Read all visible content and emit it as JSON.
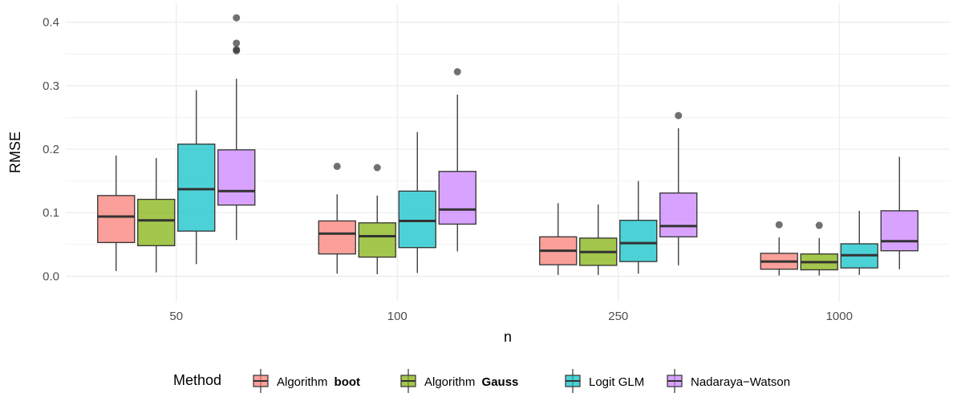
{
  "chart_data": {
    "type": "box",
    "xlabel": "n",
    "ylabel": "RMSE",
    "categories": [
      "50",
      "100",
      "250",
      "1000"
    ],
    "ylim": [
      -0.04,
      0.43
    ],
    "yticks": [
      0.0,
      0.1,
      0.2,
      0.3,
      0.4
    ],
    "ytick_labels": [
      "0.0",
      "0.1",
      "0.2",
      "0.3",
      "0.4"
    ],
    "grid": true,
    "legend": {
      "title": "Method",
      "position": "bottom"
    },
    "series": [
      {
        "name_prefix": "Algorithm ",
        "name_bold": "boot",
        "color": "#f8766d",
        "boxes": [
          {
            "whisker_low": 0.008,
            "q1": 0.053,
            "median": 0.094,
            "q3": 0.127,
            "whisker_high": 0.19,
            "outliers": []
          },
          {
            "whisker_low": 0.004,
            "q1": 0.035,
            "median": 0.067,
            "q3": 0.087,
            "whisker_high": 0.129,
            "outliers": [
              0.173
            ]
          },
          {
            "whisker_low": 0.002,
            "q1": 0.018,
            "median": 0.04,
            "q3": 0.062,
            "whisker_high": 0.115,
            "outliers": []
          },
          {
            "whisker_low": 0.001,
            "q1": 0.011,
            "median": 0.023,
            "q3": 0.036,
            "whisker_high": 0.061,
            "outliers": [
              0.081
            ]
          }
        ]
      },
      {
        "name_prefix": "Algorithm ",
        "name_bold": "Gauss",
        "color": "#7cae00",
        "boxes": [
          {
            "whisker_low": 0.006,
            "q1": 0.048,
            "median": 0.088,
            "q3": 0.121,
            "whisker_high": 0.186,
            "outliers": []
          },
          {
            "whisker_low": 0.003,
            "q1": 0.03,
            "median": 0.063,
            "q3": 0.084,
            "whisker_high": 0.127,
            "outliers": [
              0.171
            ]
          },
          {
            "whisker_low": 0.002,
            "q1": 0.017,
            "median": 0.038,
            "q3": 0.06,
            "whisker_high": 0.113,
            "outliers": []
          },
          {
            "whisker_low": 0.001,
            "q1": 0.01,
            "median": 0.022,
            "q3": 0.035,
            "whisker_high": 0.06,
            "outliers": [
              0.08
            ]
          }
        ]
      },
      {
        "name": "Logit GLM",
        "color": "#00bfc4",
        "boxes": [
          {
            "whisker_low": 0.019,
            "q1": 0.071,
            "median": 0.137,
            "q3": 0.208,
            "whisker_high": 0.293,
            "outliers": []
          },
          {
            "whisker_low": 0.005,
            "q1": 0.045,
            "median": 0.087,
            "q3": 0.134,
            "whisker_high": 0.227,
            "outliers": []
          },
          {
            "whisker_low": 0.004,
            "q1": 0.023,
            "median": 0.052,
            "q3": 0.088,
            "whisker_high": 0.15,
            "outliers": []
          },
          {
            "whisker_low": 0.002,
            "q1": 0.013,
            "median": 0.033,
            "q3": 0.051,
            "whisker_high": 0.103,
            "outliers": []
          }
        ]
      },
      {
        "name": "Nadaraya−Watson",
        "color": "#c77cff",
        "boxes": [
          {
            "whisker_low": 0.057,
            "q1": 0.112,
            "median": 0.134,
            "q3": 0.199,
            "whisker_high": 0.311,
            "outliers": [
              0.355,
              0.357,
              0.367,
              0.407
            ]
          },
          {
            "whisker_low": 0.039,
            "q1": 0.082,
            "median": 0.105,
            "q3": 0.165,
            "whisker_high": 0.286,
            "outliers": [
              0.322
            ]
          },
          {
            "whisker_low": 0.017,
            "q1": 0.062,
            "median": 0.079,
            "q3": 0.131,
            "whisker_high": 0.233,
            "outliers": [
              0.253
            ]
          },
          {
            "whisker_low": 0.011,
            "q1": 0.04,
            "median": 0.055,
            "q3": 0.103,
            "whisker_high": 0.188,
            "outliers": []
          }
        ]
      }
    ]
  }
}
